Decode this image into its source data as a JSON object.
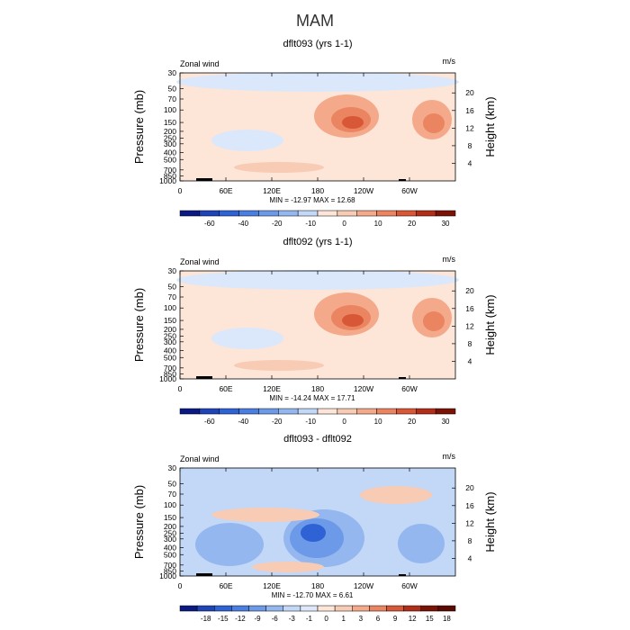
{
  "figure": {
    "title": "MAM"
  },
  "colors": {
    "shared_bar": [
      "#0a1a82",
      "#1f44b8",
      "#2f62d4",
      "#4a7ee0",
      "#6d9ae8",
      "#94b7f0",
      "#c3d7f7",
      "#fde5d8",
      "#f8cbb4",
      "#f3a98a",
      "#eb8460",
      "#d85737",
      "#b22e18",
      "#7a1206"
    ],
    "diff_bar": [
      "#0a1a82",
      "#1f44b8",
      "#2f62d4",
      "#4a7ee0",
      "#6d9ae8",
      "#94b7f0",
      "#c3d7f7",
      "#dde8fa",
      "#fde5d8",
      "#f8cbb4",
      "#f3a98a",
      "#eb8460",
      "#d85737",
      "#b22e18",
      "#7a1206",
      "#5a0a02"
    ]
  },
  "chart_data": [
    {
      "type": "heatmap",
      "title": "dflt093 (yrs 1-1)",
      "variable": "Zonal wind",
      "units": "m/s",
      "ylabel": "Pressure (mb)",
      "ylabel_right": "Height (km)",
      "x_ticks": [
        "0",
        "60E",
        "120E",
        "180",
        "120W",
        "60W"
      ],
      "y_ticks": [
        "30",
        "50",
        "70",
        "100",
        "150",
        "200",
        "250",
        "300",
        "400",
        "500",
        "700",
        "850",
        "1000"
      ],
      "height_ticks": [
        "4",
        "8",
        "12",
        "16",
        "20"
      ],
      "stats": "MIN = -12.97   MAX =  12.68",
      "colorbar_ticks": [
        "-60",
        "-40",
        "-20",
        "-10",
        "0",
        "10",
        "20",
        "30"
      ],
      "colorbar_colors": "shared_bar"
    },
    {
      "type": "heatmap",
      "title": "dflt092 (yrs 1-1)",
      "variable": "Zonal wind",
      "units": "m/s",
      "ylabel": "Pressure (mb)",
      "ylabel_right": "Height (km)",
      "x_ticks": [
        "0",
        "60E",
        "120E",
        "180",
        "120W",
        "60W"
      ],
      "y_ticks": [
        "30",
        "50",
        "70",
        "100",
        "150",
        "200",
        "250",
        "300",
        "400",
        "500",
        "700",
        "850",
        "1000"
      ],
      "height_ticks": [
        "4",
        "8",
        "12",
        "16",
        "20"
      ],
      "stats": "MIN = -14.24   MAX =  17.71",
      "colorbar_ticks": [
        "-60",
        "-40",
        "-20",
        "-10",
        "0",
        "10",
        "20",
        "30"
      ],
      "colorbar_colors": "shared_bar"
    },
    {
      "type": "heatmap",
      "title": "dflt093 - dflt092",
      "variable": "Zonal wind",
      "units": "m/s",
      "ylabel": "Pressure (mb)",
      "ylabel_right": "Height (km)",
      "x_ticks": [
        "0",
        "60E",
        "120E",
        "180",
        "120W",
        "60W"
      ],
      "y_ticks": [
        "30",
        "50",
        "70",
        "100",
        "150",
        "200",
        "250",
        "300",
        "400",
        "500",
        "700",
        "850",
        "1000"
      ],
      "height_ticks": [
        "4",
        "8",
        "12",
        "16",
        "20"
      ],
      "stats": "MIN = -12.70   MAX =     6.61",
      "colorbar_ticks": [
        "-18",
        "-15",
        "-12",
        "-9",
        "-6",
        "-3",
        "-1",
        "0",
        "1",
        "3",
        "6",
        "9",
        "12",
        "15",
        "18"
      ],
      "colorbar_colors": "diff_bar"
    }
  ]
}
